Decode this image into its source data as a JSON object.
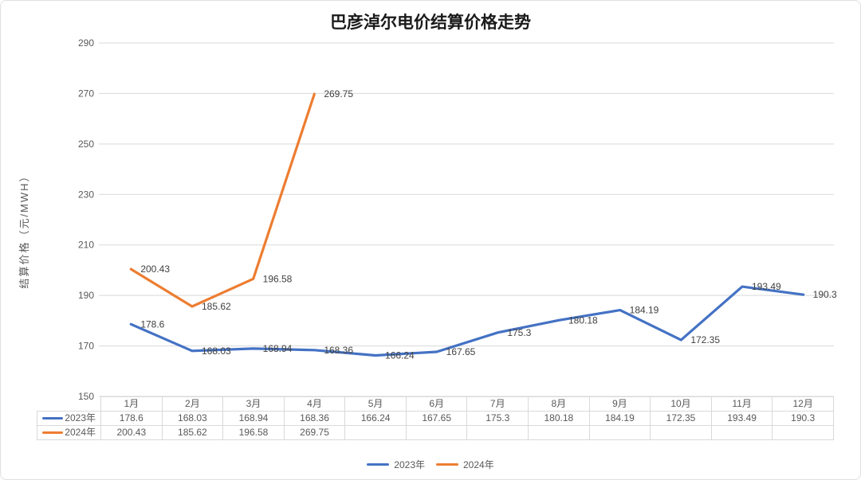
{
  "colors": {
    "series_2023": "#4472C4",
    "series_2024": "#ED7D31",
    "gridline": "#D9D9D9",
    "axis_text": "#595959",
    "label_text": "#404040",
    "table_border": "#D9D9D9",
    "title_text": "#1A1A1A"
  },
  "chart_data": {
    "type": "line",
    "title": "巴彦淖尔电价结算价格走势",
    "ylabel": "结算价格（元/MWH）",
    "xlabel": "",
    "ylim": [
      150,
      290
    ],
    "yticks": [
      150,
      170,
      190,
      210,
      230,
      250,
      270,
      290
    ],
    "grid": true,
    "data_labels": true,
    "legend_position": "bottom",
    "data_table": true,
    "categories": [
      "1月",
      "2月",
      "3月",
      "4月",
      "5月",
      "6月",
      "7月",
      "8月",
      "9月",
      "10月",
      "11月",
      "12月"
    ],
    "series": [
      {
        "name": "2023年",
        "color": "#4472C4",
        "values": [
          178.6,
          168.03,
          168.94,
          168.36,
          166.24,
          167.65,
          175.3,
          180.18,
          184.19,
          172.35,
          193.49,
          190.3
        ]
      },
      {
        "name": "2024年",
        "color": "#ED7D31",
        "values": [
          200.43,
          185.62,
          196.58,
          269.75,
          null,
          null,
          null,
          null,
          null,
          null,
          null,
          null
        ]
      }
    ]
  }
}
